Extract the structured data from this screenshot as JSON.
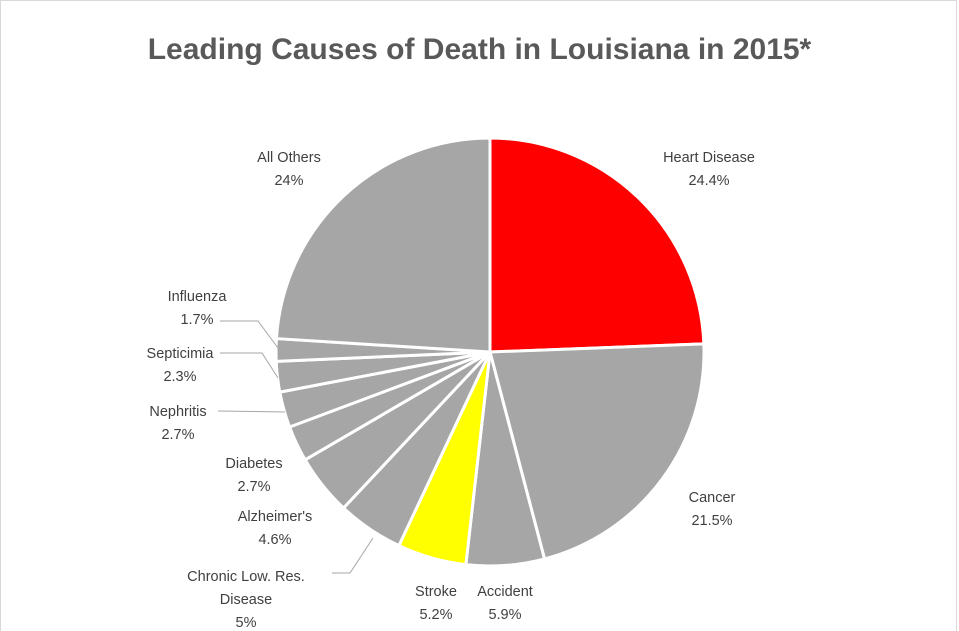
{
  "chart_data": {
    "type": "pie",
    "title": "Leading Causes of Death in Louisiana in 2015*",
    "slices": [
      {
        "label_lines": [
          "Heart Disease"
        ],
        "pct_label": "24.4%",
        "value": 24.4,
        "color": "#ff0000"
      },
      {
        "label_lines": [
          "Cancer"
        ],
        "pct_label": "21.5%",
        "value": 21.5,
        "color": "#a6a6a6"
      },
      {
        "label_lines": [
          "Accident"
        ],
        "pct_label": "5.9%",
        "value": 5.9,
        "color": "#a6a6a6"
      },
      {
        "label_lines": [
          "Stroke"
        ],
        "pct_label": "5.2%",
        "value": 5.2,
        "color": "#ffff00"
      },
      {
        "label_lines": [
          "Chronic Low. Res.",
          "Disease"
        ],
        "pct_label": "5%",
        "value": 5.0,
        "color": "#a6a6a6"
      },
      {
        "label_lines": [
          "Alzheimer's"
        ],
        "pct_label": "4.6%",
        "value": 4.6,
        "color": "#a6a6a6"
      },
      {
        "label_lines": [
          "Diabetes"
        ],
        "pct_label": "2.7%",
        "value": 2.7,
        "color": "#a6a6a6"
      },
      {
        "label_lines": [
          "Nephritis"
        ],
        "pct_label": "2.7%",
        "value": 2.7,
        "color": "#a6a6a6"
      },
      {
        "label_lines": [
          "Septicimia"
        ],
        "pct_label": "2.3%",
        "value": 2.3,
        "color": "#a6a6a6"
      },
      {
        "label_lines": [
          "Influenza"
        ],
        "pct_label": "1.7%",
        "value": 1.7,
        "color": "#a6a6a6"
      },
      {
        "label_lines": [
          "All Others"
        ],
        "pct_label": "24%",
        "value": 24.0,
        "color": "#a6a6a6"
      }
    ]
  }
}
